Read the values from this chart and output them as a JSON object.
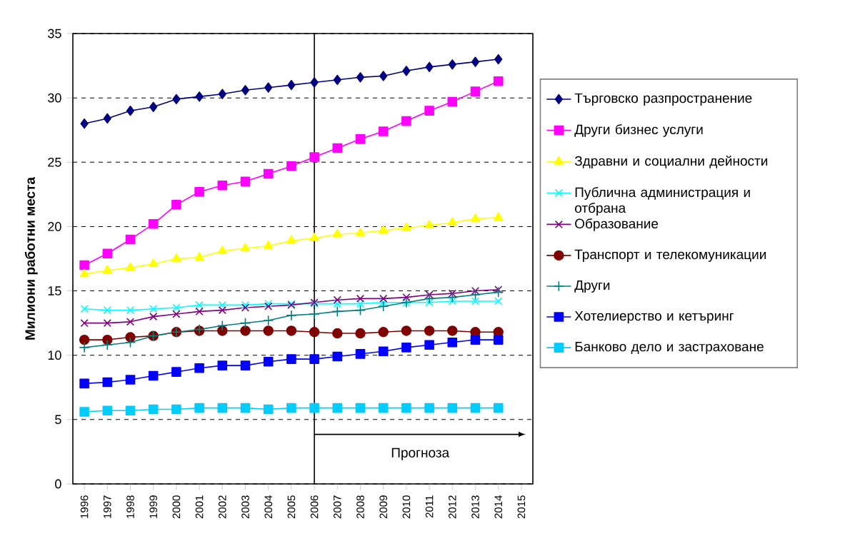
{
  "chart_data": {
    "type": "line",
    "ylabel": "Милиони работни места",
    "x": [
      1996,
      1997,
      1998,
      1999,
      2000,
      2001,
      2002,
      2003,
      2004,
      2005,
      2006,
      2007,
      2008,
      2009,
      2010,
      2011,
      2012,
      2013,
      2014
    ],
    "xlim": [
      1995.5,
      2015.5
    ],
    "xticks": [
      1996,
      1997,
      1998,
      1999,
      2000,
      2001,
      2002,
      2003,
      2004,
      2005,
      2006,
      2007,
      2008,
      2009,
      2010,
      2011,
      2012,
      2013,
      2014,
      2015
    ],
    "ylim": [
      0,
      35
    ],
    "yticks": [
      0,
      5,
      10,
      15,
      20,
      25,
      30,
      35
    ],
    "grid": "y",
    "legend": "right",
    "series": [
      {
        "name": "Търговско разпространение",
        "color": "#000080",
        "marker": "diamond",
        "values": [
          28.0,
          28.4,
          29.0,
          29.3,
          29.9,
          30.1,
          30.3,
          30.6,
          30.8,
          31.0,
          31.2,
          31.4,
          31.6,
          31.7,
          32.1,
          32.4,
          32.6,
          32.8,
          33.0
        ]
      },
      {
        "name": "Други бизнес услуги",
        "color": "#ff00ff",
        "marker": "square",
        "values": [
          17.0,
          17.9,
          19.0,
          20.2,
          21.7,
          22.7,
          23.2,
          23.5,
          24.1,
          24.7,
          25.4,
          26.1,
          26.8,
          27.4,
          28.2,
          29.0,
          29.7,
          30.5,
          31.3
        ]
      },
      {
        "name": "Здравни и социални дейности",
        "color": "#ffff00",
        "marker": "triangle",
        "values": [
          16.3,
          16.6,
          16.8,
          17.1,
          17.5,
          17.6,
          18.1,
          18.3,
          18.5,
          18.9,
          19.1,
          19.4,
          19.5,
          19.7,
          19.9,
          20.1,
          20.3,
          20.6,
          20.7
        ]
      },
      {
        "name": "Публична администрация и отбрана",
        "color": "#00ffff",
        "marker": "cross",
        "values": [
          13.6,
          13.5,
          13.5,
          13.6,
          13.7,
          13.9,
          13.9,
          13.9,
          14.0,
          14.0,
          14.0,
          14.0,
          14.0,
          14.1,
          14.1,
          14.1,
          14.2,
          14.2,
          14.2
        ]
      },
      {
        "name": "Образование",
        "color": "#800080",
        "marker": "cross",
        "values": [
          12.5,
          12.5,
          12.6,
          13.0,
          13.2,
          13.4,
          13.5,
          13.7,
          13.8,
          13.9,
          14.1,
          14.3,
          14.4,
          14.4,
          14.5,
          14.7,
          14.8,
          15.0,
          15.1
        ]
      },
      {
        "name": "Транспорт и телекомуникации",
        "color": "#800000",
        "marker": "circle",
        "values": [
          11.2,
          11.2,
          11.4,
          11.5,
          11.8,
          11.9,
          11.9,
          11.9,
          11.9,
          11.9,
          11.8,
          11.7,
          11.7,
          11.8,
          11.9,
          11.9,
          11.9,
          11.8,
          11.8
        ]
      },
      {
        "name": "Други",
        "color": "#008080",
        "marker": "plus",
        "values": [
          10.6,
          10.8,
          11.0,
          11.5,
          11.8,
          12.0,
          12.3,
          12.5,
          12.7,
          13.1,
          13.2,
          13.4,
          13.5,
          13.8,
          14.1,
          14.4,
          14.5,
          14.7,
          14.9
        ]
      },
      {
        "name": "Хотелиерство и кетъринг",
        "color": "#0000ff",
        "marker": "square",
        "values": [
          7.8,
          7.9,
          8.1,
          8.4,
          8.7,
          9.0,
          9.2,
          9.2,
          9.5,
          9.7,
          9.7,
          9.9,
          10.1,
          10.3,
          10.6,
          10.8,
          11.0,
          11.2,
          11.2
        ]
      },
      {
        "name": "Банково дело и застраховане",
        "color": "#00ccff",
        "marker": "square",
        "values": [
          5.6,
          5.7,
          5.7,
          5.8,
          5.8,
          5.9,
          5.9,
          5.9,
          5.8,
          5.9,
          5.9,
          5.9,
          5.9,
          5.9,
          5.9,
          5.9,
          5.9,
          5.9,
          5.9
        ]
      }
    ],
    "ref_lines": [
      {
        "axis": "x",
        "value": 2006
      }
    ],
    "annotations": [
      "Прогноза"
    ]
  }
}
